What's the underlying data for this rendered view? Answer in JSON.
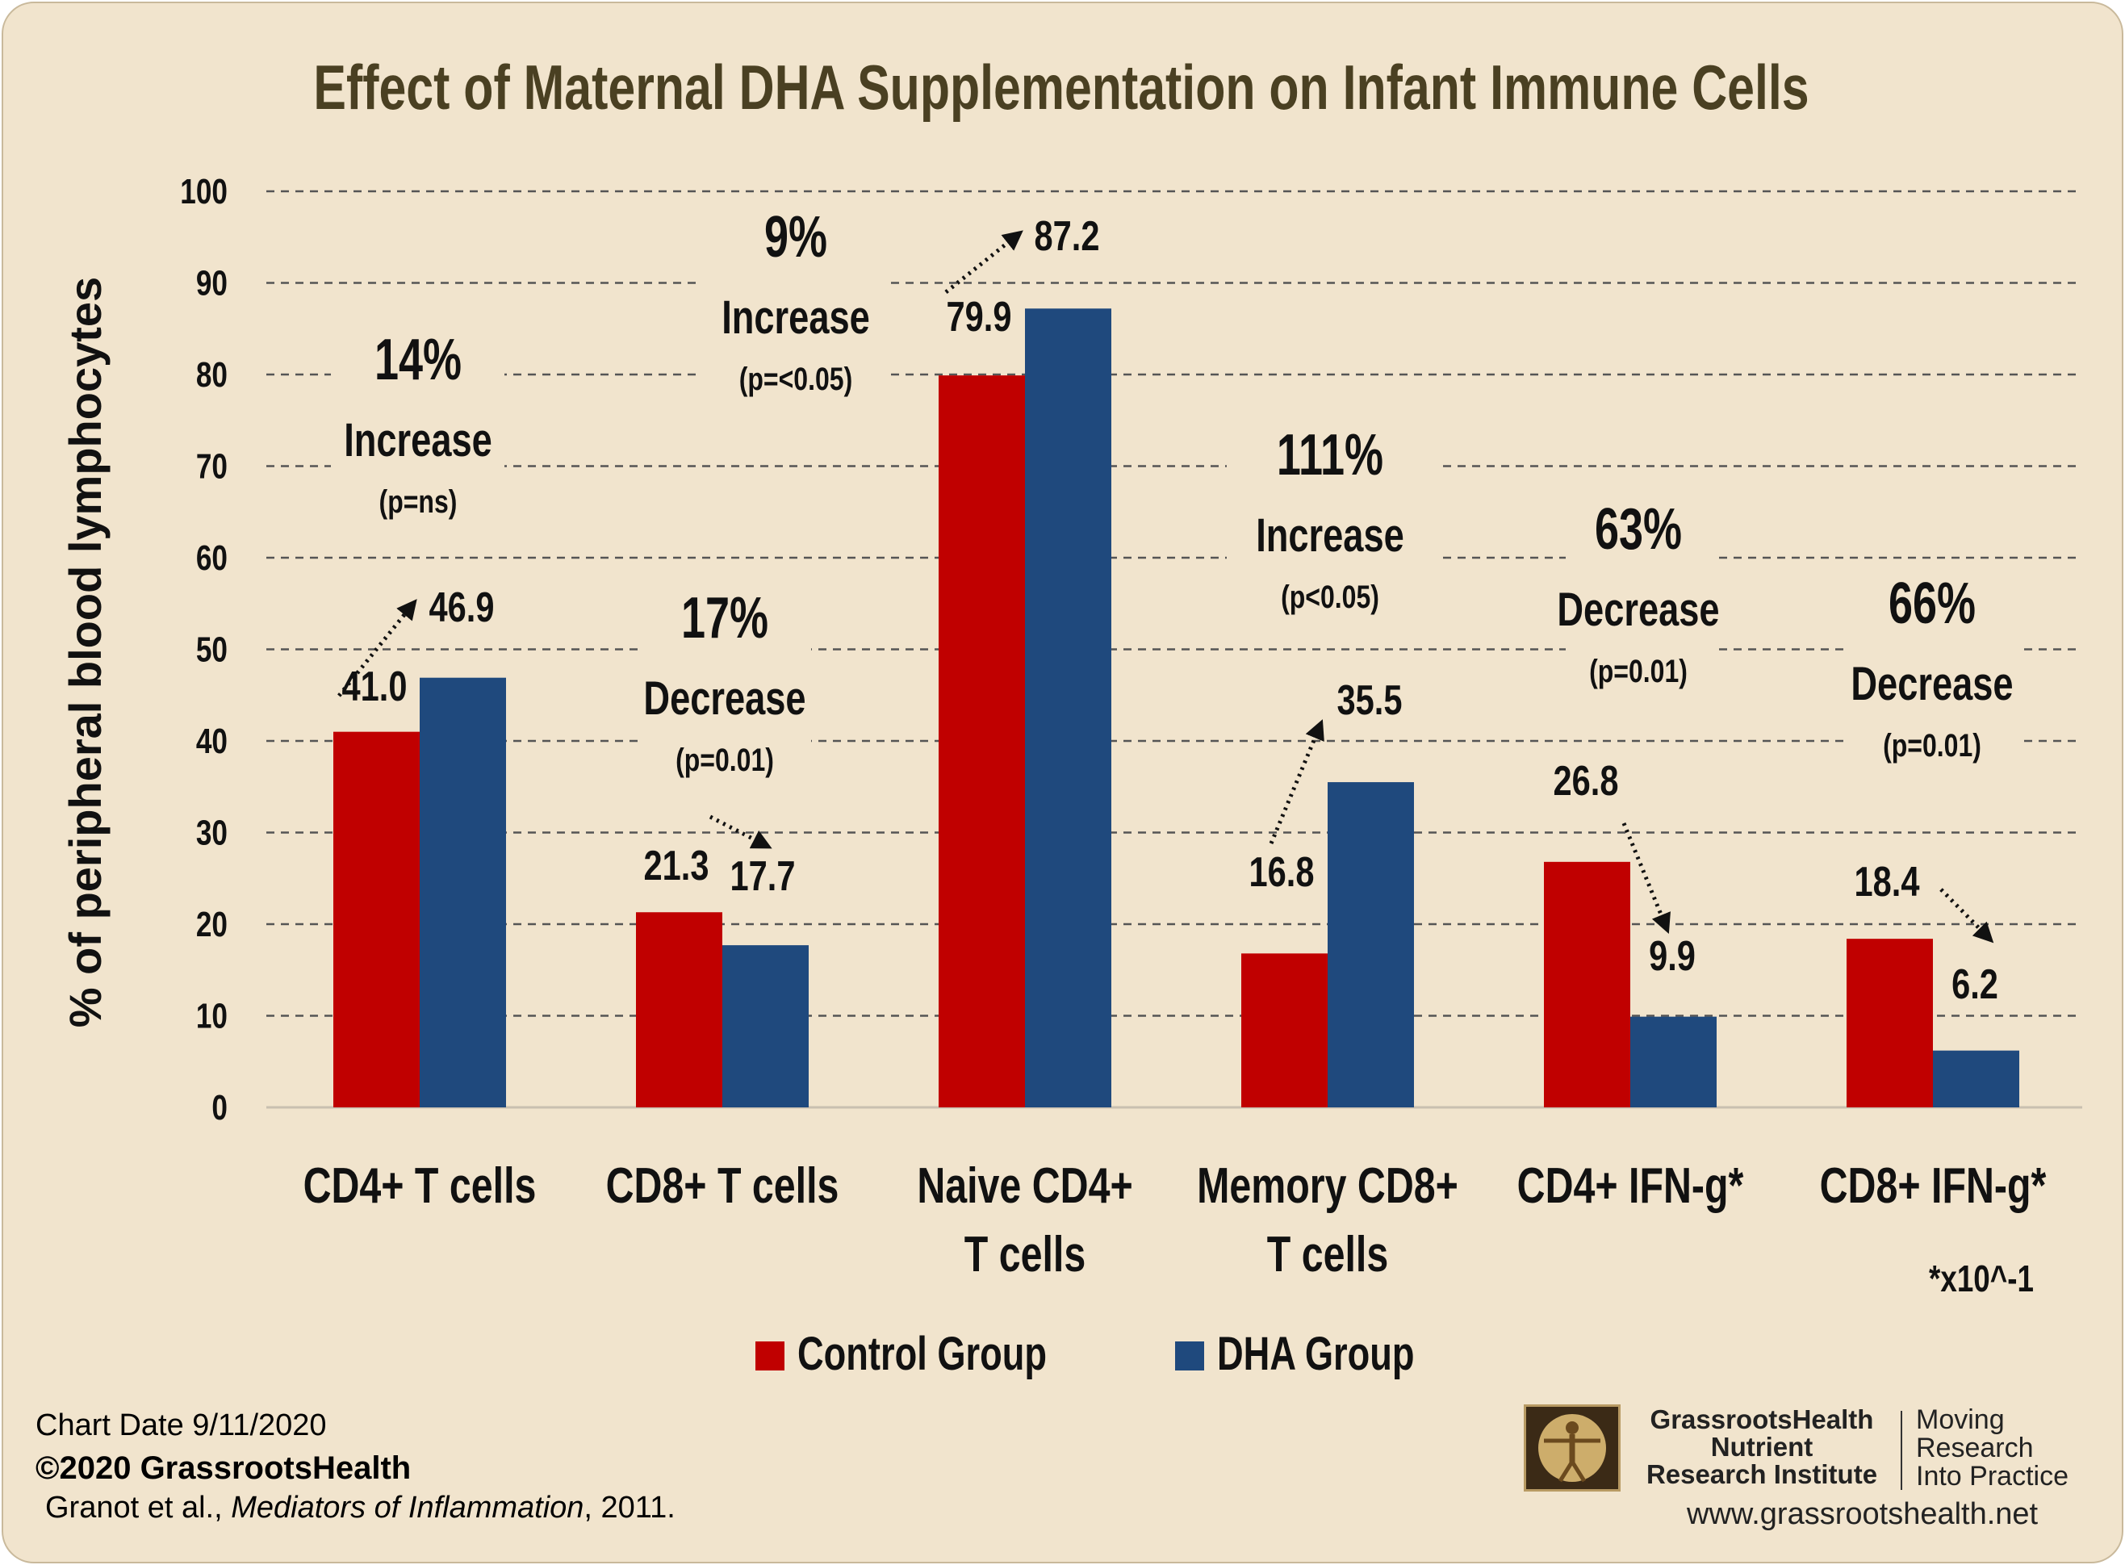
{
  "title": "Effect of Maternal DHA Supplementation on Infant Immune Cells",
  "chart_data": {
    "type": "bar",
    "title": "Effect of Maternal DHA Supplementation on Infant Immune Cells",
    "ylabel": "% of peripheral blood lymphocytes",
    "xlabel": "",
    "ylim": [
      0,
      100
    ],
    "yticks": [
      "0",
      "10",
      "20",
      "30",
      "40",
      "50",
      "60",
      "70",
      "80",
      "90",
      "100"
    ],
    "grid": true,
    "legend_position": "bottom",
    "categories": [
      [
        "CD4+ T cells"
      ],
      [
        "CD8+ T cells"
      ],
      [
        "Naive CD4+",
        "T cells"
      ],
      [
        "Memory CD8+",
        "T cells"
      ],
      [
        "CD4+ IFN-g*"
      ],
      [
        "CD8+ IFN-g*"
      ]
    ],
    "series": [
      {
        "name": "Control Group",
        "color": "#c00000",
        "values": [
          41.0,
          21.3,
          79.9,
          16.8,
          26.8,
          18.4
        ],
        "labels": [
          "41.0",
          "21.3",
          "79.9",
          "16.8",
          "26.8",
          "18.4"
        ]
      },
      {
        "name": "DHA Group",
        "color": "#1f497d",
        "values": [
          46.9,
          17.7,
          87.2,
          35.5,
          9.9,
          6.2
        ],
        "labels": [
          "46.9",
          "17.7",
          "87.2",
          "35.5",
          "9.9",
          "6.2"
        ]
      }
    ],
    "annotations": [
      {
        "percent": "14%",
        "direction": "Increase",
        "p": "(p=ns)"
      },
      {
        "percent": "17%",
        "direction": "Decrease",
        "p": "(p=0.01)"
      },
      {
        "percent": "9%",
        "direction": "Increase",
        "p": "(p=<0.05)"
      },
      {
        "percent": "111%",
        "direction": "Increase",
        "p": "(p<0.05)"
      },
      {
        "percent": "63%",
        "direction": "Decrease",
        "p": "(p=0.01)"
      },
      {
        "percent": "66%",
        "direction": "Decrease",
        "p": "(p=0.01)"
      }
    ],
    "footnote": "*x10^-1"
  },
  "footer": {
    "chart_date": "Chart Date 9/11/2020",
    "copyright": "©2020 GrassrootsHealth",
    "citation_authors": "Granot et al., ",
    "citation_journal": "Mediators of Inflammation",
    "citation_year": ", 2011.",
    "org_line1": "GrassrootsHealth",
    "org_line2": "Nutrient",
    "org_line3": "Research Institute",
    "tagline1": "Moving",
    "tagline2": "Research",
    "tagline3": "Into Practice",
    "website": "www.grassrootshealth.net"
  },
  "colors": {
    "background": "#f1e4cd",
    "title": "#4a4022",
    "control": "#c00000",
    "dha": "#1f497d"
  }
}
